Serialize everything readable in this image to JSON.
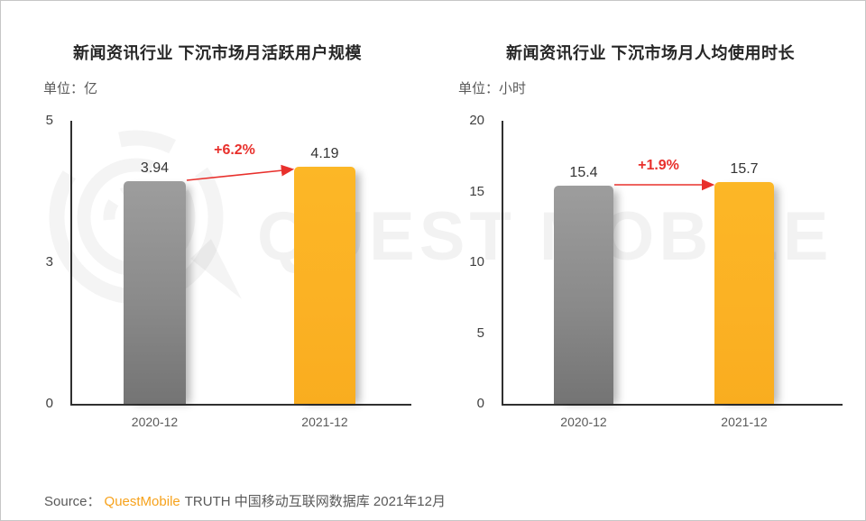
{
  "page": {
    "background": "#ffffff",
    "frame_border": "#c6c6c6"
  },
  "watermark": {
    "text": "QUEST MOBILE",
    "logo": "questmobile-q-rings-logo"
  },
  "chart_data": [
    {
      "type": "bar",
      "title": "新闻资讯行业 下沉市场月活跃用户规模",
      "unit_label": "单位：亿",
      "unit": "亿",
      "categories": [
        "2020-12",
        "2021-12"
      ],
      "values": [
        3.94,
        4.19
      ],
      "value_labels": [
        "3.94",
        "4.19"
      ],
      "growth_label": "+6.2%",
      "ylim": [
        0,
        5
      ],
      "yticks": [
        "0",
        "3",
        "5"
      ],
      "grid": false,
      "legend": "none",
      "bar_colors": [
        "#8c8c8c",
        "#fbb124"
      ]
    },
    {
      "type": "bar",
      "title": "新闻资讯行业 下沉市场月人均使用时长",
      "unit_label": "单位：小时",
      "unit": "小时",
      "categories": [
        "2020-12",
        "2021-12"
      ],
      "values": [
        15.4,
        15.7
      ],
      "value_labels": [
        "15.4",
        "15.7"
      ],
      "growth_label": "+1.9%",
      "ylim": [
        0,
        20
      ],
      "yticks": [
        "0",
        "5",
        "10",
        "15",
        "20"
      ],
      "grid": false,
      "legend": "none",
      "bar_colors": [
        "#8c8c8c",
        "#fbb124"
      ]
    }
  ],
  "source": {
    "prefix": "Source：",
    "brand": "QuestMobile",
    "suffix": "TRUTH 中国移动互联网数据库 2021年12月"
  },
  "colors": {
    "bar_previous": "#8c8c8c",
    "bar_current": "#fbb124",
    "annotation_red": "#e8302c",
    "brand_orange": "#f7a21b",
    "text_dark": "#262626",
    "text_gray": "#595959"
  }
}
